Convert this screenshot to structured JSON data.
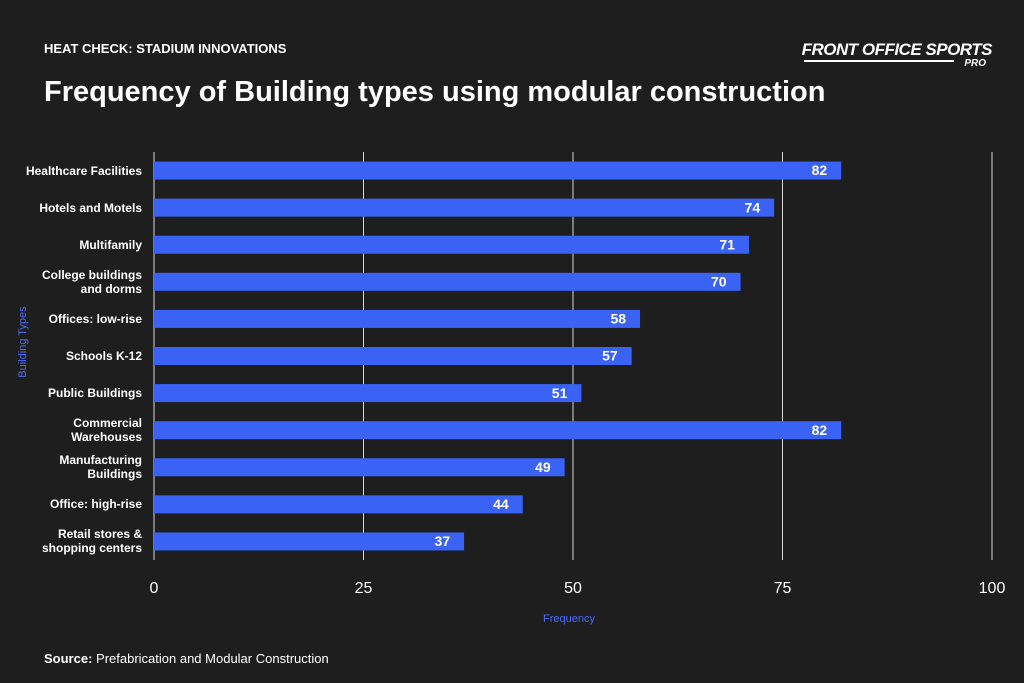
{
  "kicker": "HEAT CHECK: STADIUM INNOVATIONS",
  "brand": {
    "name": "FRONT OFFICE SPORTS",
    "tier": "PRO"
  },
  "source": {
    "label": "Source:",
    "text": "Prefabrication and Modular Construction"
  },
  "chart_data": {
    "type": "bar",
    "orientation": "horizontal",
    "title": "Frequency of Building types using modular construction",
    "x_label": "Frequency",
    "y_label": "Building Types",
    "categories": [
      "Healthcare Facilities",
      "Hotels and Motels",
      "Multifamily",
      "College buildings and dorms",
      "Offices: low-rise",
      "Schools K-12",
      "Public Buildings",
      "Commercial Warehouses",
      "Manufacturing Buildings",
      "Office: high-rise",
      "Retail stores & shopping centers"
    ],
    "values": [
      82,
      74,
      71,
      70,
      58,
      57,
      51,
      82,
      49,
      44,
      37
    ],
    "color": "#3a63f5",
    "xlim": [
      0,
      100
    ],
    "xticks": [
      0,
      25,
      50,
      75,
      100
    ],
    "grid": true
  }
}
